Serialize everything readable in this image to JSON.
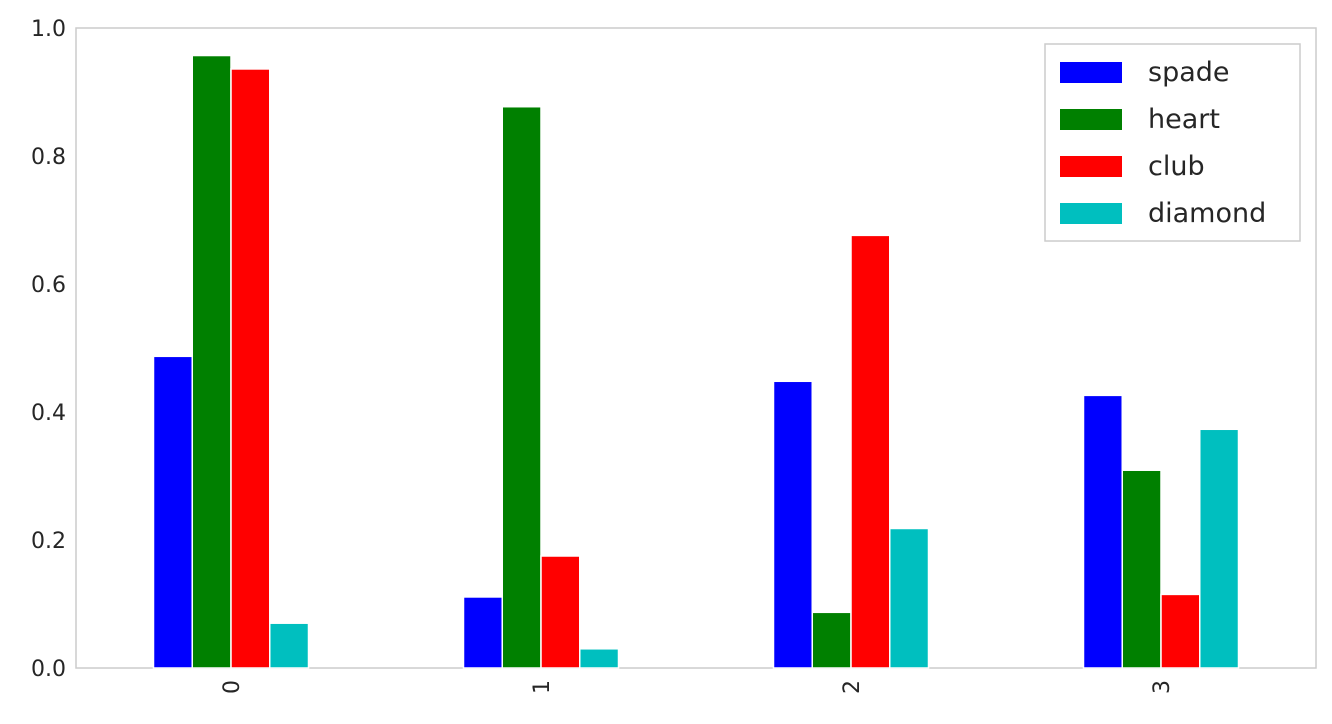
{
  "chart_data": {
    "type": "bar",
    "categories": [
      "0",
      "1",
      "2",
      "3"
    ],
    "series": [
      {
        "name": "spade",
        "color": "#0000ff",
        "values": [
          0.487,
          0.111,
          0.448,
          0.426
        ]
      },
      {
        "name": "heart",
        "color": "#008000",
        "values": [
          0.957,
          0.877,
          0.087,
          0.309
        ]
      },
      {
        "name": "club",
        "color": "#ff0000",
        "values": [
          0.936,
          0.175,
          0.676,
          0.115
        ]
      },
      {
        "name": "diamond",
        "color": "#00bfbf",
        "values": [
          0.07,
          0.03,
          0.218,
          0.373
        ]
      }
    ],
    "title": "",
    "xlabel": "",
    "ylabel": "",
    "ylim": [
      0,
      1.0
    ],
    "yticks": [
      "0.0",
      "0.2",
      "0.4",
      "0.6",
      "0.8",
      "1.0"
    ],
    "grid": false,
    "legend_position": "top-right",
    "xtick_rotation": "vertical"
  }
}
